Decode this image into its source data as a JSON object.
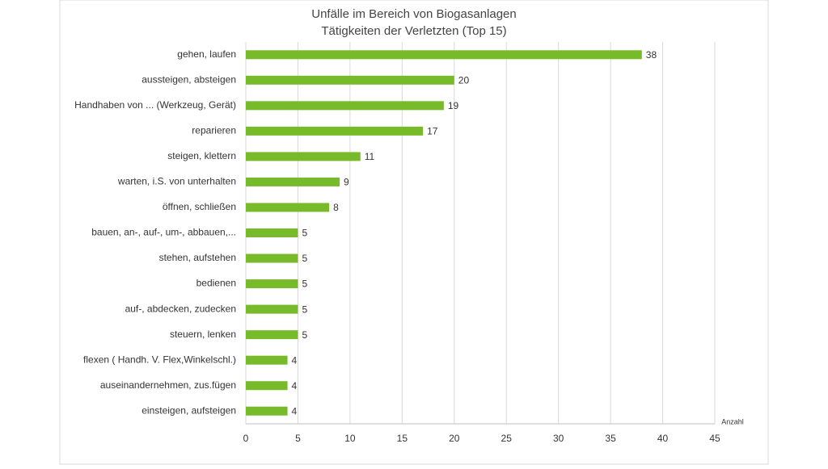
{
  "chart_data": {
    "type": "barh",
    "title": "Unfälle im Bereich von Biogasanlagen",
    "subtitle": "Tätigkeiten der Verletzten (Top 15)",
    "x_label": "Anzahl",
    "categories": [
      "gehen, laufen",
      "aussteigen, absteigen",
      "Handhaben von ... (Werkzeug, Gerät)",
      "reparieren",
      "steigen, klettern",
      "warten, i.S. von unterhalten",
      "öffnen, schließen",
      "bauen, an-, auf-, um-, abbauen,...",
      "stehen, aufstehen",
      "bedienen",
      "auf-, abdecken, zudecken",
      "steuern, lenken",
      "flexen ( Handh. V. Flex,Winkelschl.)",
      "auseinandernehmen, zus.fügen",
      "einsteigen, aufsteigen"
    ],
    "values": [
      38,
      20,
      19,
      17,
      11,
      9,
      8,
      5,
      5,
      5,
      5,
      5,
      4,
      4,
      4
    ],
    "color": "#77bb2b",
    "xlim": [
      0,
      45
    ],
    "xticks": [
      0,
      5,
      10,
      15,
      20,
      25,
      30,
      35,
      40,
      45
    ],
    "grid": true
  }
}
